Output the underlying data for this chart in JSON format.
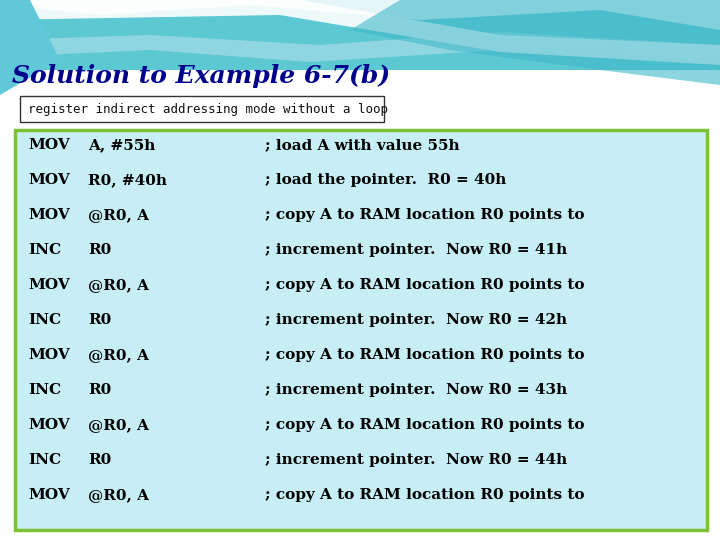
{
  "title": "Solution to Example 6-7(b)",
  "subtitle": "register indirect addressing mode without a loop",
  "title_color": "#00008B",
  "title_fontsize": 18,
  "subtitle_fontsize": 9,
  "bg_box_color": "#C8EEF5",
  "box_border_color": "#7DC232",
  "subtitle_box_border": "#333333",
  "code_lines": [
    [
      "MOV",
      "A, #55h",
      "; load A with value 55h"
    ],
    [
      "MOV",
      "R0, #40h",
      "; load the pointer.  R0 = 40h"
    ],
    [
      "MOV",
      "@R0, A",
      "; copy A to RAM location R0 points to"
    ],
    [
      "INC",
      "R0",
      "; increment pointer.  Now R0 = 41h"
    ],
    [
      "MOV",
      "@R0, A",
      "; copy A to RAM location R0 points to"
    ],
    [
      "INC",
      "R0",
      "; increment pointer.  Now R0 = 42h"
    ],
    [
      "MOV",
      "@R0, A",
      "; copy A to RAM location R0 points to"
    ],
    [
      "INC",
      "R0",
      "; increment pointer.  Now R0 = 43h"
    ],
    [
      "MOV",
      "@R0, A",
      "; copy A to RAM location R0 points to"
    ],
    [
      "INC",
      "R0",
      "; increment pointer.  Now R0 = 44h"
    ],
    [
      "MOV",
      "@R0, A",
      "; copy A to RAM location R0 points to"
    ]
  ],
  "code_fontsize": 11,
  "code_color": "#000000",
  "fig_width": 7.2,
  "fig_height": 5.4,
  "dpi": 100
}
